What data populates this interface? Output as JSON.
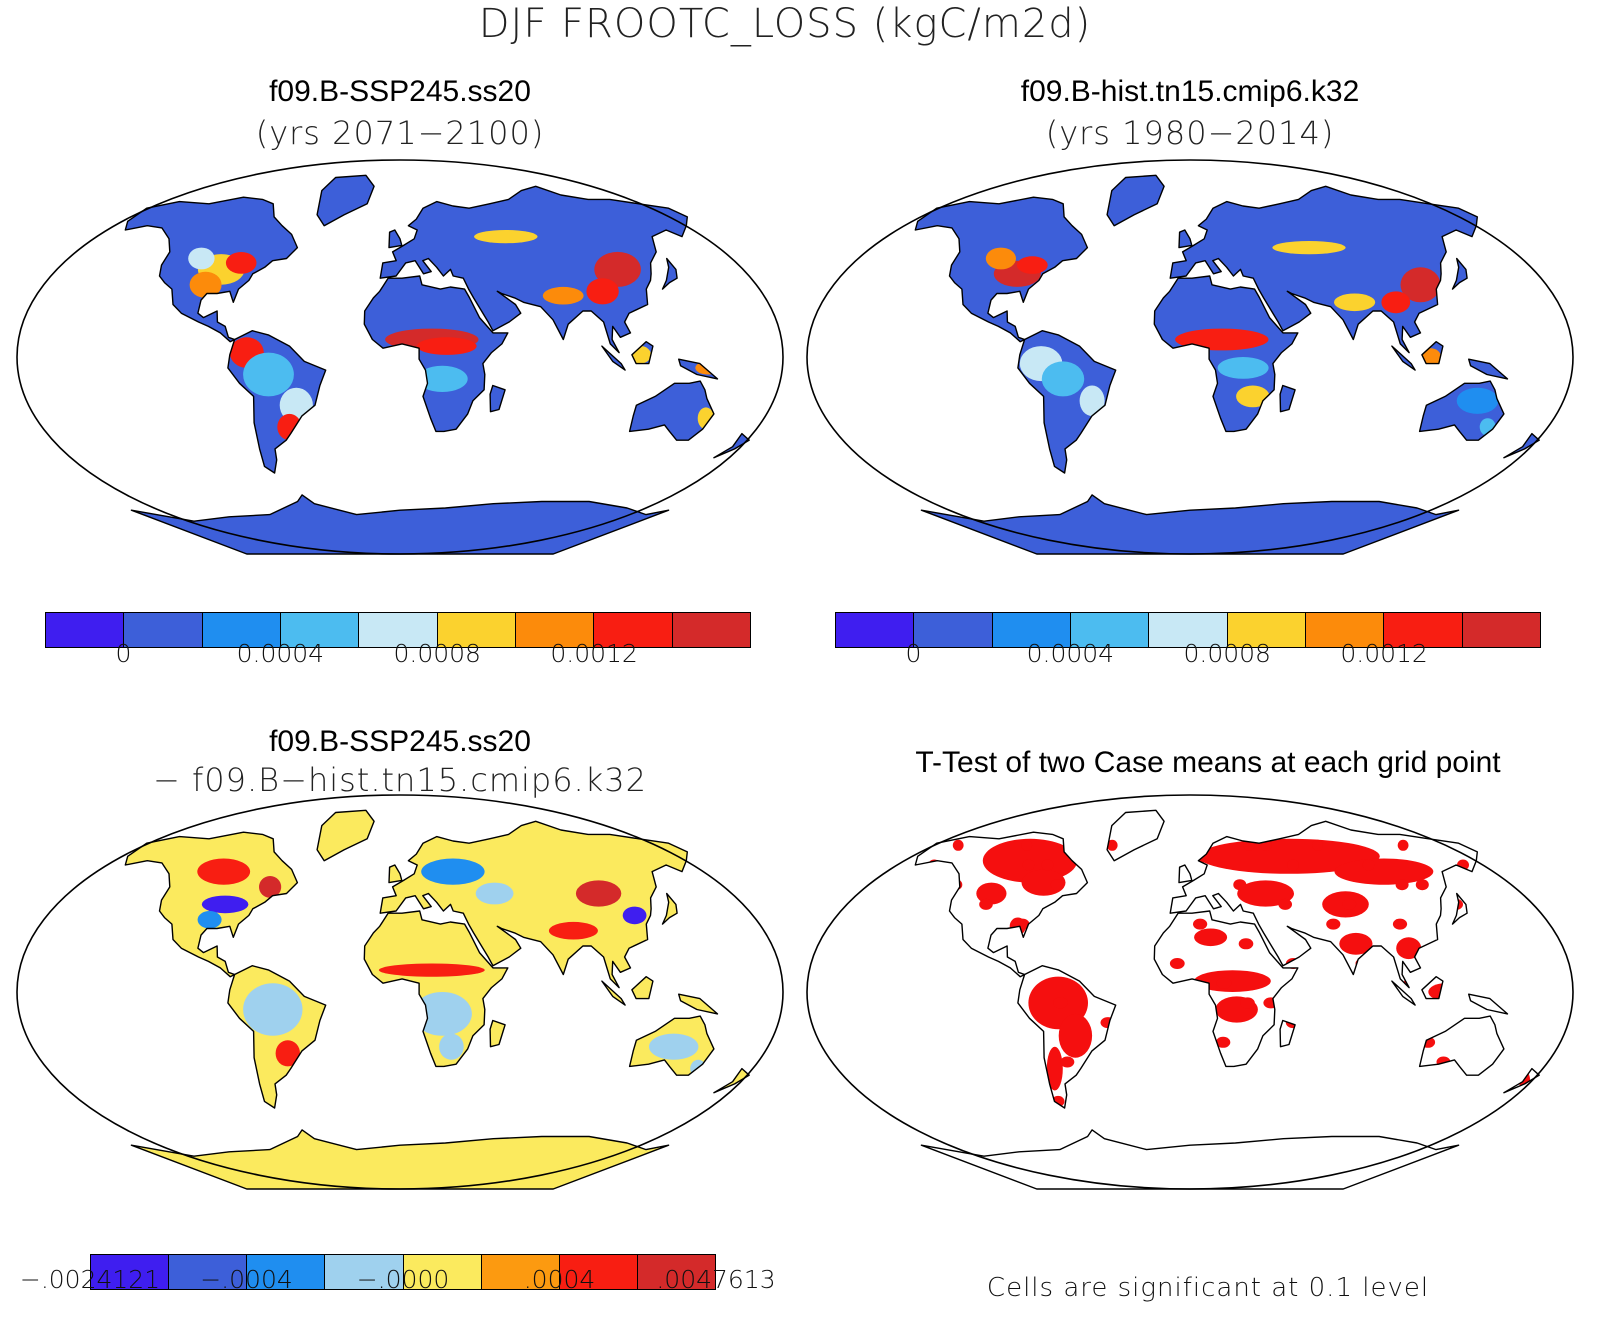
{
  "title": "DJF FROOTC_LOSS (kgC/m2d)",
  "panels": [
    {
      "id": "test",
      "title": "f09.B-SSP245.ss20",
      "subtitle": "(yrs 2071−2100)",
      "colorbar": {
        "colors": [
          "#3f1ef0",
          "#3d5fd9",
          "#1f8ef0",
          "#4cbcf0",
          "#c8e8f5",
          "#fbd22e",
          "#fc8b0b",
          "#f81e12",
          "#d42a2a"
        ],
        "ticks": [
          "0",
          "0.0004",
          "0.0008",
          "0.0012"
        ]
      }
    },
    {
      "id": "control",
      "title": "f09.B-hist.tn15.cmip6.k32",
      "subtitle": "(yrs 1980−2014)",
      "colorbar": {
        "colors": [
          "#3f1ef0",
          "#3d5fd9",
          "#1f8ef0",
          "#4cbcf0",
          "#c8e8f5",
          "#fbd22e",
          "#fc8b0b",
          "#f81e12",
          "#d42a2a"
        ],
        "ticks": [
          "0",
          "0.0004",
          "0.0008",
          "0.0012"
        ]
      }
    },
    {
      "id": "difference",
      "title": "f09.B-SSP245.ss20",
      "subtitle": "− f09.B−hist.tn15.cmip6.k32",
      "colorbar": {
        "colors": [
          "#3f1ef0",
          "#3d5fd9",
          "#1f8ef0",
          "#9fd1ee",
          "#fbea5e",
          "#fc9a10",
          "#f81e12",
          "#d42a2a"
        ],
        "ticks": [
          "−.0024121",
          "−.0004",
          "−.0000",
          ".0004",
          ".0047613"
        ]
      }
    },
    {
      "id": "ttest",
      "title": "T-Test of two Case means at each grid point",
      "note": "Cells are significant at 0.1 level",
      "significant_color": "#f50f0f"
    }
  ]
}
